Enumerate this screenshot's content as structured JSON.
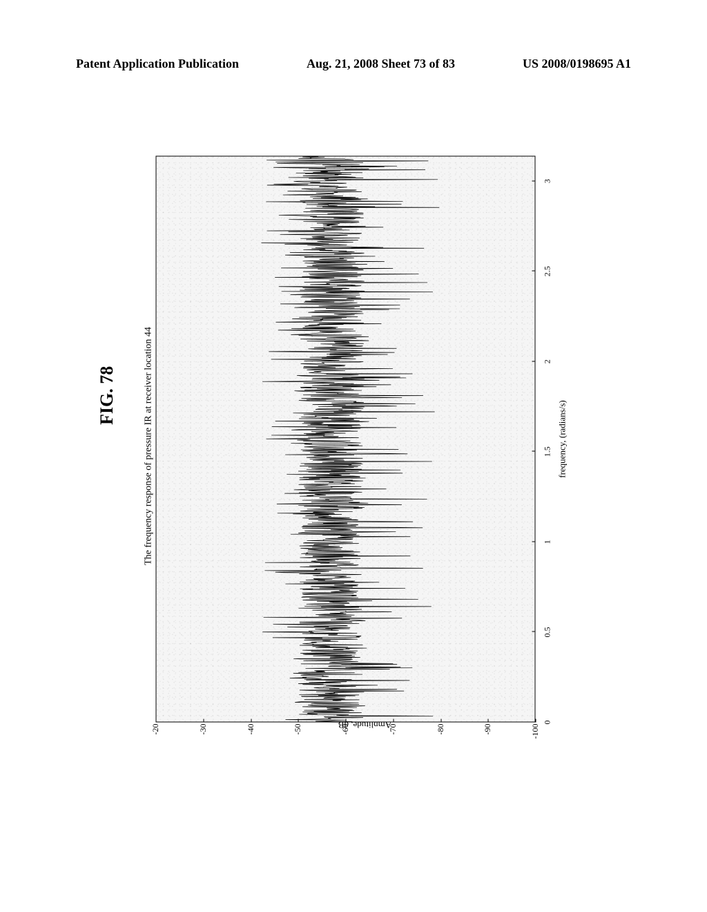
{
  "header": {
    "left": "Patent Application Publication",
    "center": "Aug. 21, 2008  Sheet 73 of 83",
    "right": "US 2008/0198695 A1"
  },
  "figure": {
    "label": "FIG. 78",
    "chart": {
      "type": "line",
      "title": "The frequency response of pressure IR at receiver location 44",
      "xlabel": "frequency, (radians/s)",
      "ylabel": "Amplitude, dB",
      "xlim": [
        0,
        3.14
      ],
      "ylim": [
        -100,
        -20
      ],
      "xticks": [
        0,
        0.5,
        1,
        1.5,
        2,
        2.5,
        3
      ],
      "xtick_labels": [
        "0",
        "0.5",
        "1",
        "1.5",
        "2",
        "2.5",
        "3"
      ],
      "yticks": [
        -20,
        -30,
        -40,
        -50,
        -60,
        -70,
        -80,
        -90,
        -100
      ],
      "ytick_labels": [
        "-20",
        "-30",
        "-40",
        "-50",
        "-60",
        "-70",
        "-80",
        "-90",
        "-100"
      ],
      "background_color": "#f5f5f5",
      "line_color": "#000000",
      "line_width": 0.7,
      "axis_color": "#000000",
      "label_fontsize": 13,
      "title_fontsize": 14,
      "tick_fontsize": 12,
      "signal_mean_db": -57,
      "signal_dense_band_db": [
        -52,
        -64
      ],
      "signal_spike_min_db": -78,
      "signal_spike_max_db": -48,
      "noise_overlay": true
    }
  }
}
